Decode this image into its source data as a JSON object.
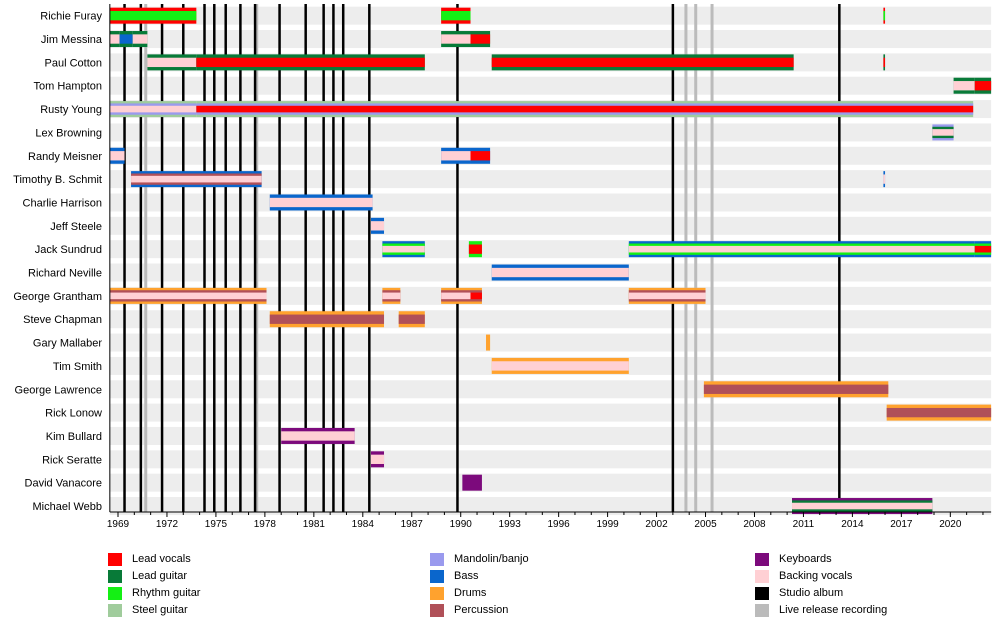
{
  "chart_data": {
    "type": "timeline",
    "title": "",
    "xlabel": "",
    "ylabel": "",
    "xlim": [
      1968.5,
      2022.5
    ],
    "x_ticks": [
      1969,
      1972,
      1975,
      1978,
      1981,
      1984,
      1987,
      1990,
      1993,
      1996,
      1999,
      2002,
      2005,
      2008,
      2011,
      2014,
      2017,
      2020
    ],
    "roles": {
      "lead_vocals": {
        "label": "Lead vocals",
        "color": "#ff0000"
      },
      "lead_guitar": {
        "label": "Lead guitar",
        "color": "#087a38"
      },
      "rhythm_guitar": {
        "label": "Rhythm guitar",
        "color": "#14f014"
      },
      "steel_guitar": {
        "label": "Steel guitar",
        "color": "#a0cc9c"
      },
      "mandolin": {
        "label": "Mandolin/banjo",
        "color": "#9a9aee"
      },
      "bass": {
        "label": "Bass",
        "color": "#0a66cc"
      },
      "drums": {
        "label": "Drums",
        "color": "#ffa22e"
      },
      "percussion": {
        "label": "Percussion",
        "color": "#b05058"
      },
      "keyboards": {
        "label": "Keyboards",
        "color": "#7c0a7c"
      },
      "backing_vocals": {
        "label": "Backing vocals",
        "color": "#ffd0d4"
      },
      "studio_album": {
        "label": "Studio album",
        "color": "#000000"
      },
      "live_release": {
        "label": "Live release recording",
        "color": "#bbbbbb"
      }
    },
    "studio_albums": [
      1969.4,
      1970.4,
      1971.7,
      1973.0,
      1974.3,
      1974.9,
      1975.6,
      1976.5,
      1977.4,
      1978.9,
      1980.5,
      1981.6,
      1982.2,
      1982.8,
      1984.4,
      1989.8,
      2003.0,
      2013.2
    ],
    "live_releases": [
      1970.7,
      1977.5,
      2003.8,
      2004.4,
      2005.4
    ],
    "members": [
      {
        "name": "Richie Furay",
        "segments": [
          {
            "from": 1968.5,
            "to": 1973.8,
            "roles": [
              "lead_vocals",
              "rhythm_guitar"
            ]
          },
          {
            "from": 1988.8,
            "to": 1990.6,
            "roles": [
              "lead_vocals",
              "rhythm_guitar"
            ]
          },
          {
            "from": 2015.9,
            "to": 2016.0,
            "roles": [
              "lead_vocals",
              "rhythm_guitar"
            ]
          }
        ]
      },
      {
        "name": "Jim Messina",
        "segments": [
          {
            "from": 1968.5,
            "to": 1969.1,
            "roles": [
              "lead_guitar",
              "backing_vocals"
            ]
          },
          {
            "from": 1969.1,
            "to": 1969.9,
            "roles": [
              "lead_guitar",
              "bass"
            ]
          },
          {
            "from": 1969.9,
            "to": 1970.8,
            "roles": [
              "lead_guitar",
              "backing_vocals"
            ]
          },
          {
            "from": 1988.8,
            "to": 1990.6,
            "roles": [
              "lead_guitar",
              "backing_vocals"
            ]
          },
          {
            "from": 1990.6,
            "to": 1991.8,
            "roles": [
              "lead_guitar",
              "lead_vocals"
            ]
          }
        ]
      },
      {
        "name": "Paul Cotton",
        "segments": [
          {
            "from": 1970.8,
            "to": 1973.8,
            "roles": [
              "lead_guitar",
              "backing_vocals"
            ]
          },
          {
            "from": 1973.8,
            "to": 1987.8,
            "roles": [
              "lead_guitar",
              "lead_vocals"
            ]
          },
          {
            "from": 1991.9,
            "to": 2010.4,
            "roles": [
              "lead_guitar",
              "lead_vocals"
            ]
          },
          {
            "from": 2015.9,
            "to": 2016.0,
            "roles": [
              "lead_guitar",
              "lead_vocals"
            ]
          }
        ]
      },
      {
        "name": "Tom Hampton",
        "segments": [
          {
            "from": 2020.2,
            "to": 2021.5,
            "roles": [
              "lead_guitar",
              "backing_vocals"
            ]
          },
          {
            "from": 2021.5,
            "to": 2022.5,
            "roles": [
              "lead_guitar",
              "lead_vocals"
            ]
          }
        ]
      },
      {
        "name": "Rusty Young",
        "segments": [
          {
            "from": 1968.5,
            "to": 1973.8,
            "roles": [
              "steel_guitar",
              "mandolin",
              "backing_vocals"
            ]
          },
          {
            "from": 1973.8,
            "to": 2021.4,
            "roles": [
              "steel_guitar",
              "mandolin",
              "lead_vocals"
            ]
          }
        ]
      },
      {
        "name": "Lex Browning",
        "segments": [
          {
            "from": 2018.9,
            "to": 2020.2,
            "roles": [
              "mandolin",
              "lead_guitar",
              "backing_vocals"
            ]
          }
        ]
      },
      {
        "name": "Randy Meisner",
        "segments": [
          {
            "from": 1968.5,
            "to": 1969.4,
            "roles": [
              "bass",
              "backing_vocals"
            ]
          },
          {
            "from": 1988.8,
            "to": 1990.6,
            "roles": [
              "bass",
              "backing_vocals"
            ]
          },
          {
            "from": 1990.6,
            "to": 1991.8,
            "roles": [
              "bass",
              "lead_vocals"
            ]
          }
        ]
      },
      {
        "name": "Timothy B. Schmit",
        "segments": [
          {
            "from": 1969.8,
            "to": 1977.8,
            "roles": [
              "bass",
              "percussion",
              "backing_vocals"
            ]
          },
          {
            "from": 2015.9,
            "to": 2016.0,
            "roles": [
              "bass",
              "backing_vocals"
            ]
          }
        ]
      },
      {
        "name": "Charlie Harrison",
        "segments": [
          {
            "from": 1978.3,
            "to": 1984.6,
            "roles": [
              "bass",
              "backing_vocals"
            ]
          }
        ]
      },
      {
        "name": "Jeff Steele",
        "segments": [
          {
            "from": 1984.5,
            "to": 1985.3,
            "roles": [
              "bass",
              "backing_vocals"
            ]
          }
        ]
      },
      {
        "name": "Jack Sundrud",
        "segments": [
          {
            "from": 1985.2,
            "to": 1987.8,
            "roles": [
              "bass",
              "rhythm_guitar",
              "backing_vocals"
            ]
          },
          {
            "from": 1990.5,
            "to": 1991.3,
            "roles": [
              "rhythm_guitar",
              "lead_vocals"
            ]
          },
          {
            "from": 2000.3,
            "to": 2021.5,
            "roles": [
              "bass",
              "rhythm_guitar",
              "backing_vocals"
            ]
          },
          {
            "from": 2021.5,
            "to": 2022.5,
            "roles": [
              "bass",
              "rhythm_guitar",
              "lead_vocals"
            ]
          }
        ]
      },
      {
        "name": "Richard Neville",
        "segments": [
          {
            "from": 1991.9,
            "to": 2000.3,
            "roles": [
              "bass",
              "backing_vocals"
            ]
          }
        ]
      },
      {
        "name": "George Grantham",
        "segments": [
          {
            "from": 1968.5,
            "to": 1978.1,
            "roles": [
              "drums",
              "percussion",
              "backing_vocals"
            ]
          },
          {
            "from": 1985.2,
            "to": 1986.3,
            "roles": [
              "drums",
              "percussion",
              "backing_vocals"
            ]
          },
          {
            "from": 1988.8,
            "to": 1990.6,
            "roles": [
              "drums",
              "percussion",
              "backing_vocals"
            ]
          },
          {
            "from": 1990.6,
            "to": 1991.3,
            "roles": [
              "drums",
              "percussion",
              "lead_vocals"
            ]
          },
          {
            "from": 2000.3,
            "to": 2005.0,
            "roles": [
              "drums",
              "percussion",
              "backing_vocals"
            ]
          }
        ]
      },
      {
        "name": "Steve Chapman",
        "segments": [
          {
            "from": 1978.3,
            "to": 1985.3,
            "roles": [
              "drums",
              "percussion"
            ]
          },
          {
            "from": 1986.2,
            "to": 1987.8,
            "roles": [
              "drums",
              "percussion"
            ]
          }
        ]
      },
      {
        "name": "Gary Mallaber",
        "segments": [
          {
            "from": 1991.55,
            "to": 1991.8,
            "roles": [
              "drums"
            ]
          }
        ]
      },
      {
        "name": "Tim Smith",
        "segments": [
          {
            "from": 1991.9,
            "to": 2000.3,
            "roles": [
              "drums",
              "backing_vocals"
            ]
          }
        ]
      },
      {
        "name": "George Lawrence",
        "segments": [
          {
            "from": 2004.9,
            "to": 2016.2,
            "roles": [
              "drums",
              "percussion"
            ]
          }
        ]
      },
      {
        "name": "Rick Lonow",
        "segments": [
          {
            "from": 2016.1,
            "to": 2022.5,
            "roles": [
              "drums",
              "percussion"
            ]
          }
        ]
      },
      {
        "name": "Kim Bullard",
        "segments": [
          {
            "from": 1979.0,
            "to": 1983.5,
            "roles": [
              "keyboards",
              "backing_vocals"
            ]
          }
        ]
      },
      {
        "name": "Rick Seratte",
        "segments": [
          {
            "from": 1984.5,
            "to": 1985.3,
            "roles": [
              "keyboards",
              "backing_vocals"
            ]
          }
        ]
      },
      {
        "name": "David Vanacore",
        "segments": [
          {
            "from": 1990.1,
            "to": 1991.3,
            "roles": [
              "keyboards"
            ]
          }
        ]
      },
      {
        "name": "Michael Webb",
        "segments": [
          {
            "from": 2010.3,
            "to": 2018.9,
            "roles": [
              "keyboards",
              "lead_guitar",
              "backing_vocals"
            ]
          }
        ]
      }
    ]
  },
  "legend": {
    "lead_vocals": "Lead vocals",
    "lead_guitar": "Lead guitar",
    "rhythm_guitar": "Rhythm guitar",
    "steel_guitar": "Steel guitar",
    "mandolin": "Mandolin/banjo",
    "bass": "Bass",
    "drums": "Drums",
    "percussion": "Percussion",
    "keyboards": "Keyboards",
    "backing_vocals": "Backing vocals",
    "studio_album": "Studio album",
    "live_release": "Live release recording"
  }
}
